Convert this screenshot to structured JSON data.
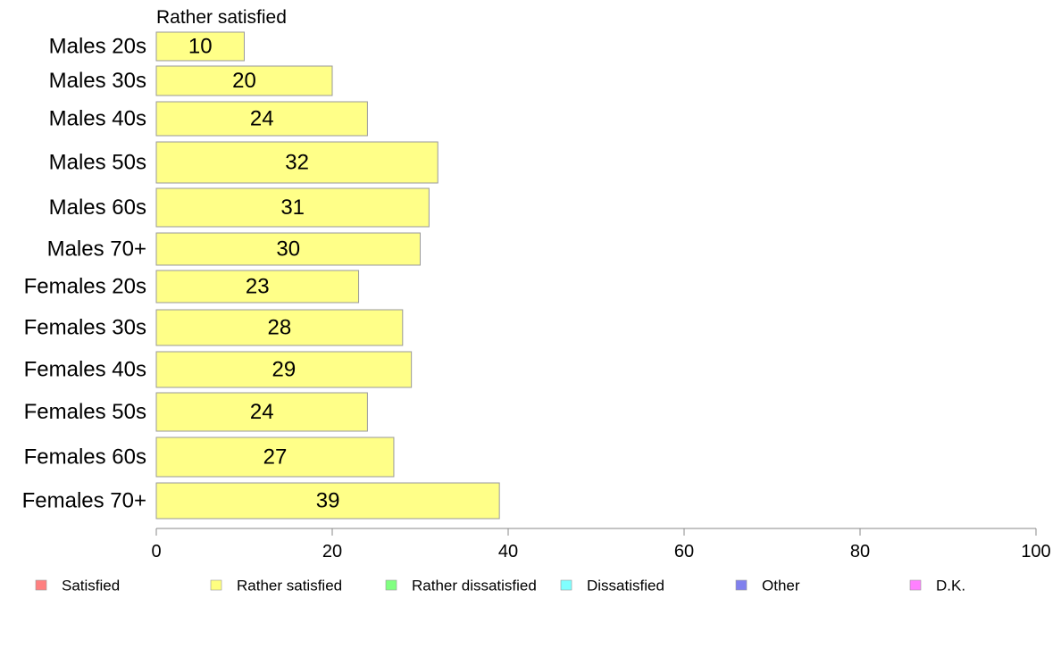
{
  "chart_data": {
    "type": "bar",
    "orientation": "horizontal",
    "title": "Rather satisfied",
    "categories": [
      "Males 20s",
      "Males 30s",
      "Males 40s",
      "Males 50s",
      "Males 60s",
      "Males 70+",
      "Females 20s",
      "Females 30s",
      "Females 40s",
      "Females 50s",
      "Females 60s",
      "Females 70+"
    ],
    "series": [
      {
        "name": "Rather satisfied",
        "values": [
          10,
          20,
          24,
          32,
          31,
          30,
          23,
          28,
          29,
          24,
          27,
          39
        ],
        "color": "#ffff88"
      }
    ],
    "xlim": [
      0,
      100
    ],
    "xticks": [
      "0",
      "20",
      "40",
      "60",
      "80",
      "100"
    ],
    "grid": false,
    "legend_position": "bottom",
    "legend": [
      {
        "label": "Satisfied",
        "color": "#ff8080"
      },
      {
        "label": "Rather satisfied",
        "color": "#ffff80"
      },
      {
        "label": "Rather dissatisfied",
        "color": "#80ff80"
      },
      {
        "label": "Dissatisfied",
        "color": "#80ffff"
      },
      {
        "label": "Other",
        "color": "#8080ee"
      },
      {
        "label": "D.K.",
        "color": "#ff80ff"
      }
    ]
  }
}
